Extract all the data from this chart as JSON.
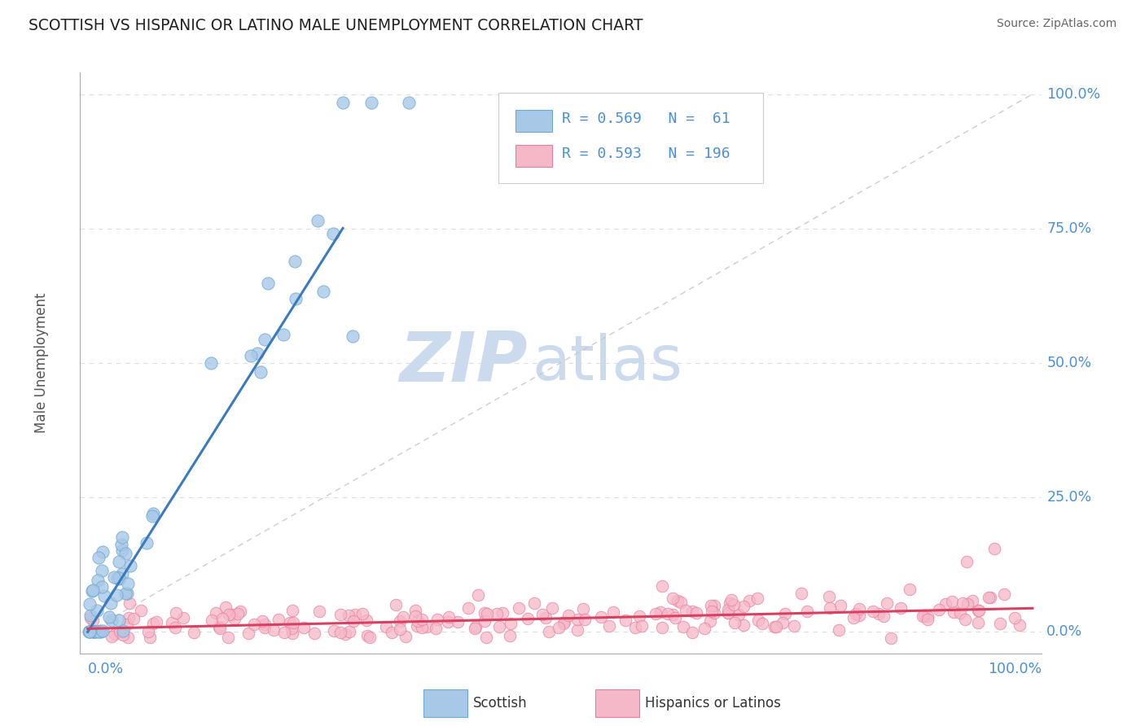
{
  "title": "SCOTTISH VS HISPANIC OR LATINO MALE UNEMPLOYMENT CORRELATION CHART",
  "source": "Source: ZipAtlas.com",
  "ylabel": "Male Unemployment",
  "ytick_labels": [
    "0.0%",
    "25.0%",
    "50.0%",
    "75.0%",
    "100.0%"
  ],
  "ytick_values": [
    0.0,
    0.25,
    0.5,
    0.75,
    1.0
  ],
  "scottish_color": "#a8c8e8",
  "scottish_edge": "#6fa8d0",
  "scottish_line_color": "#3a7abf",
  "hispanic_color": "#f5b8c8",
  "hispanic_edge": "#e87fa0",
  "hispanic_line_color": "#d94060",
  "identity_line_color": "#c8c8c8",
  "watermark_zip": "ZIP",
  "watermark_atlas": "atlas",
  "watermark_color": "#ccdaee",
  "background_color": "#ffffff",
  "title_color": "#222222",
  "source_color": "#666666",
  "axis_label_color": "#4a90d9",
  "grid_color": "#dddddd",
  "scottish_slope": 2.78,
  "scottish_intercept": 0.0,
  "hispanic_slope": 0.038,
  "hispanic_intercept": 0.006,
  "axis_label_color_bottom": "#4a90d9"
}
